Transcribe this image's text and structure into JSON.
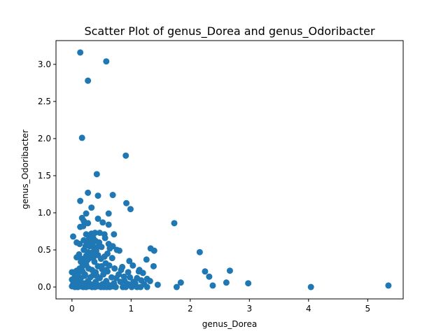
{
  "chart_data": {
    "type": "scatter",
    "title": "Scatter Plot of genus_Dorea and genus_Odoribacter",
    "xlabel": "genus_Dorea",
    "ylabel": "genus_Odoribacter",
    "xlim": [
      -0.27,
      5.6
    ],
    "ylim": [
      -0.16,
      3.32
    ],
    "xticks": [
      0,
      1,
      2,
      3,
      4,
      5
    ],
    "xtick_labels": [
      "0",
      "1",
      "2",
      "3",
      "4",
      "5"
    ],
    "yticks": [
      0.0,
      0.5,
      1.0,
      1.5,
      2.0,
      2.5,
      3.0
    ],
    "ytick_labels": [
      "0.0",
      "0.5",
      "1.0",
      "1.5",
      "2.0",
      "2.5",
      "3.0"
    ],
    "grid": false,
    "marker_color": "#1f77b4",
    "series": [
      {
        "name": "",
        "points": [
          [
            0.14,
            3.16
          ],
          [
            0.58,
            3.04
          ],
          [
            0.27,
            2.78
          ],
          [
            0.17,
            2.01
          ],
          [
            0.91,
            1.77
          ],
          [
            0.42,
            1.52
          ],
          [
            0.27,
            1.27
          ],
          [
            0.44,
            1.23
          ],
          [
            0.69,
            1.24
          ],
          [
            0.14,
            1.16
          ],
          [
            0.92,
            1.13
          ],
          [
            0.33,
            1.07
          ],
          [
            0.99,
            1.05
          ],
          [
            0.24,
            0.99
          ],
          [
            0.62,
            0.99
          ],
          [
            0.17,
            0.93
          ],
          [
            0.44,
            0.92
          ],
          [
            0.2,
            0.89
          ],
          [
            0.52,
            0.87
          ],
          [
            0.27,
            0.86
          ],
          [
            1.73,
            0.86
          ],
          [
            0.62,
            0.84
          ],
          [
            0.14,
            0.81
          ],
          [
            0.19,
            0.82
          ],
          [
            0.33,
            0.72
          ],
          [
            0.39,
            0.73
          ],
          [
            0.47,
            0.73
          ],
          [
            0.55,
            0.71
          ],
          [
            0.71,
            0.71
          ],
          [
            0.02,
            0.68
          ],
          [
            0.24,
            0.71
          ],
          [
            0.29,
            0.67
          ],
          [
            0.36,
            0.66
          ],
          [
            0.56,
            0.66
          ],
          [
            0.08,
            0.6
          ],
          [
            0.13,
            0.58
          ],
          [
            0.2,
            0.63
          ],
          [
            0.25,
            0.6
          ],
          [
            0.33,
            0.6
          ],
          [
            0.4,
            0.62
          ],
          [
            0.46,
            0.6
          ],
          [
            0.62,
            0.58
          ],
          [
            0.69,
            0.55
          ],
          [
            0.3,
            0.55
          ],
          [
            0.38,
            0.52
          ],
          [
            0.5,
            0.54
          ],
          [
            0.64,
            0.52
          ],
          [
            0.76,
            0.5
          ],
          [
            0.8,
            0.49
          ],
          [
            1.33,
            0.52
          ],
          [
            1.39,
            0.49
          ],
          [
            2.16,
            0.47
          ],
          [
            0.2,
            0.5
          ],
          [
            0.27,
            0.47
          ],
          [
            0.35,
            0.47
          ],
          [
            0.12,
            0.44
          ],
          [
            0.24,
            0.42
          ],
          [
            0.44,
            0.43
          ],
          [
            0.6,
            0.45
          ],
          [
            0.08,
            0.4
          ],
          [
            0.17,
            0.38
          ],
          [
            0.3,
            0.39
          ],
          [
            0.49,
            0.38
          ],
          [
            0.55,
            0.41
          ],
          [
            0.68,
            0.39
          ],
          [
            0.97,
            0.35
          ],
          [
            1.26,
            0.37
          ],
          [
            0.15,
            0.34
          ],
          [
            0.22,
            0.33
          ],
          [
            0.38,
            0.34
          ],
          [
            0.57,
            0.32
          ],
          [
            1.03,
            0.29
          ],
          [
            0.24,
            0.3
          ],
          [
            0.44,
            0.28
          ],
          [
            0.63,
            0.29
          ],
          [
            0.85,
            0.27
          ],
          [
            1.38,
            0.28
          ],
          [
            0.08,
            0.22
          ],
          [
            0.13,
            0.25
          ],
          [
            0.28,
            0.25
          ],
          [
            0.34,
            0.23
          ],
          [
            0.51,
            0.24
          ],
          [
            0.72,
            0.25
          ],
          [
            0.83,
            0.23
          ],
          [
            1.14,
            0.23
          ],
          [
            0.0,
            0.2
          ],
          [
            0.04,
            0.2
          ],
          [
            0.18,
            0.21
          ],
          [
            0.4,
            0.2
          ],
          [
            0.6,
            0.21
          ],
          [
            0.95,
            0.2
          ],
          [
            1.13,
            0.21
          ],
          [
            1.2,
            0.19
          ],
          [
            2.25,
            0.21
          ],
          [
            2.67,
            0.22
          ],
          [
            0.1,
            0.17
          ],
          [
            0.22,
            0.17
          ],
          [
            0.36,
            0.16
          ],
          [
            0.53,
            0.17
          ],
          [
            0.79,
            0.17
          ],
          [
            2.32,
            0.14
          ],
          [
            0.06,
            0.12
          ],
          [
            0.15,
            0.12
          ],
          [
            0.31,
            0.13
          ],
          [
            0.47,
            0.12
          ],
          [
            0.67,
            0.13
          ],
          [
            0.98,
            0.13
          ],
          [
            1.1,
            0.12
          ],
          [
            1.27,
            0.11
          ],
          [
            0.03,
            0.08
          ],
          [
            0.12,
            0.08
          ],
          [
            0.27,
            0.08
          ],
          [
            0.4,
            0.07
          ],
          [
            0.58,
            0.08
          ],
          [
            0.89,
            0.08
          ],
          [
            1.04,
            0.07
          ],
          [
            1.17,
            0.09
          ],
          [
            1.32,
            0.08
          ],
          [
            1.84,
            0.06
          ],
          [
            2.61,
            0.06
          ],
          [
            2.98,
            0.05
          ],
          [
            0.08,
            0.04
          ],
          [
            0.2,
            0.05
          ],
          [
            0.34,
            0.03
          ],
          [
            0.52,
            0.04
          ],
          [
            0.71,
            0.05
          ],
          [
            0.95,
            0.04
          ],
          [
            1.22,
            0.04
          ],
          [
            1.45,
            0.03
          ],
          [
            2.38,
            0.02
          ],
          [
            5.35,
            0.02
          ],
          [
            0.0,
            0.01
          ],
          [
            0.05,
            0.0
          ],
          [
            0.1,
            0.0
          ],
          [
            0.15,
            0.01
          ],
          [
            0.19,
            0.0
          ],
          [
            0.24,
            0.0
          ],
          [
            0.29,
            0.01
          ],
          [
            0.34,
            0.0
          ],
          [
            0.39,
            0.0
          ],
          [
            0.44,
            0.01
          ],
          [
            0.49,
            0.0
          ],
          [
            0.54,
            0.0
          ],
          [
            0.59,
            0.0
          ],
          [
            0.64,
            0.0
          ],
          [
            0.69,
            0.01
          ],
          [
            0.74,
            0.0
          ],
          [
            0.86,
            0.0
          ],
          [
            0.91,
            0.0
          ],
          [
            1.01,
            0.0
          ],
          [
            1.1,
            0.0
          ],
          [
            1.16,
            0.0
          ],
          [
            1.27,
            0.0
          ],
          [
            1.77,
            0.0
          ],
          [
            4.04,
            0.0
          ],
          [
            0.02,
            0.04
          ],
          [
            0.06,
            0.02
          ],
          [
            0.11,
            0.03
          ],
          [
            0.17,
            0.02
          ],
          [
            0.22,
            0.03
          ],
          [
            0.26,
            0.02
          ],
          [
            0.31,
            0.04
          ],
          [
            0.37,
            0.02
          ],
          [
            0.42,
            0.03
          ],
          [
            0.47,
            0.02
          ],
          [
            0.56,
            0.02
          ],
          [
            0.61,
            0.03
          ],
          [
            0.66,
            0.02
          ],
          [
            0.0,
            0.1
          ],
          [
            0.05,
            0.15
          ],
          [
            0.18,
            0.28
          ],
          [
            0.26,
            0.36
          ],
          [
            0.29,
            0.44
          ],
          [
            0.35,
            0.56
          ],
          [
            0.41,
            0.49
          ],
          [
            0.23,
            0.55
          ],
          [
            0.31,
            0.63
          ],
          [
            0.45,
            0.55
          ],
          [
            0.37,
            0.41
          ],
          [
            0.21,
            0.15
          ],
          [
            0.42,
            0.15
          ],
          [
            0.5,
            0.28
          ],
          [
            0.58,
            0.23
          ],
          [
            0.75,
            0.12
          ],
          [
            0.82,
            0.07
          ],
          [
            0.88,
            0.14
          ],
          [
            1.07,
            0.05
          ]
        ]
      }
    ]
  }
}
